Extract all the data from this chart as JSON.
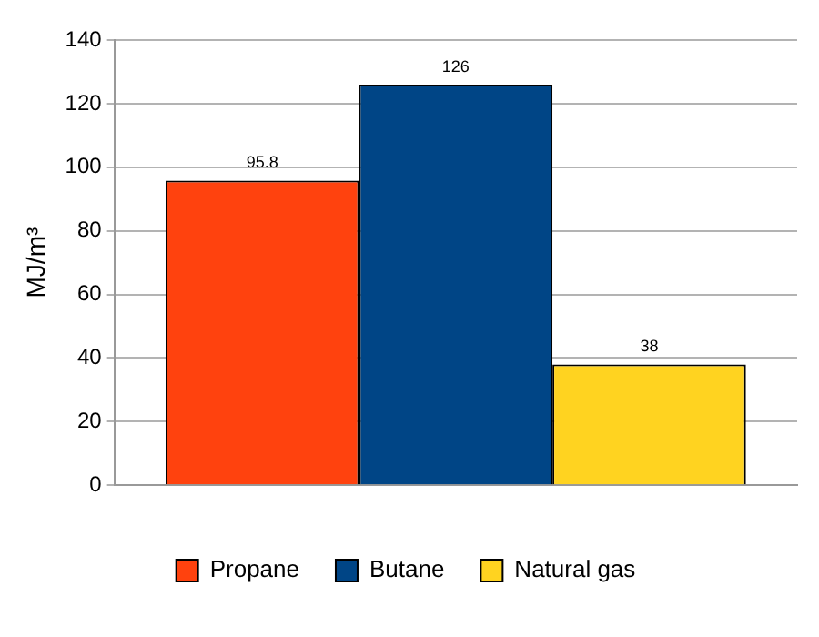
{
  "chart_data": {
    "type": "bar",
    "ylabel": "MJ/m³",
    "categories": [
      null
    ],
    "series": [
      {
        "name": "Propane",
        "color": "#ff420e",
        "values": [
          95.8
        ]
      },
      {
        "name": "Butane",
        "color": "#004586",
        "values": [
          126
        ]
      },
      {
        "name": "Natural gas",
        "color": "#ffd320",
        "values": [
          38
        ]
      }
    ],
    "ylim": [
      0,
      140
    ],
    "yticks": [
      0,
      20,
      40,
      60,
      80,
      100,
      120,
      140
    ],
    "grid": "y",
    "legend": "bottom",
    "data_labels": true
  }
}
